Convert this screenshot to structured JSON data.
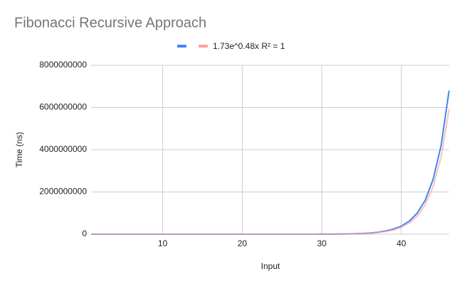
{
  "chart_data": {
    "type": "line",
    "title": "Fibonacci Recursive Approach",
    "x_label": "Input",
    "y_label": "Time (ns)",
    "x": [
      1,
      2,
      3,
      4,
      5,
      6,
      7,
      8,
      9,
      10,
      11,
      12,
      13,
      14,
      15,
      16,
      17,
      18,
      19,
      20,
      21,
      22,
      23,
      24,
      25,
      26,
      27,
      28,
      29,
      30,
      31,
      32,
      33,
      34,
      35,
      36,
      37,
      38,
      39,
      40,
      41,
      42,
      43,
      44,
      45,
      46
    ],
    "series": [
      {
        "color": "#4285f4",
        "values": [
          3,
          5,
          8,
          10,
          20,
          30,
          50,
          80,
          130,
          200,
          330,
          540,
          870,
          1400,
          2300,
          3700,
          5900,
          9600,
          15000,
          25000,
          41000,
          66000,
          110000,
          170000,
          280000,
          450000,
          730000,
          1200000,
          1900000,
          3100000,
          5000000,
          8000000,
          13000000,
          21000000,
          34000000,
          56000000,
          90000000,
          150000000,
          240000000,
          380000000,
          620000000,
          1000000000,
          1600000000,
          2600000000,
          4200000000,
          6800000000
        ]
      },
      {
        "name": "1.73e^0.48x R² = 1",
        "color": "#ff9e9e",
        "values": [
          2,
          4,
          6,
          10,
          16,
          26,
          42,
          68,
          110,
          180,
          290,
          460,
          750,
          1200,
          2000,
          3200,
          5100,
          8300,
          13400,
          22000,
          35000,
          57000,
          92000,
          150000,
          240000,
          390000,
          630000,
          1000000,
          1600000,
          2700000,
          4300000,
          7000000,
          11000000,
          18000000,
          30000000,
          48000000,
          78000000,
          126000000,
          200000000,
          330000000,
          530000000,
          860000000,
          1390000000,
          2250000000,
          3650000000,
          5900000000
        ]
      }
    ],
    "xlim": [
      1,
      46
    ],
    "xticks": [
      10,
      20,
      30,
      40
    ],
    "ylim": [
      0,
      8000000000
    ],
    "yticks": [
      0,
      2000000000,
      4000000000,
      6000000000,
      8000000000
    ],
    "grid": true,
    "legend": "top"
  }
}
